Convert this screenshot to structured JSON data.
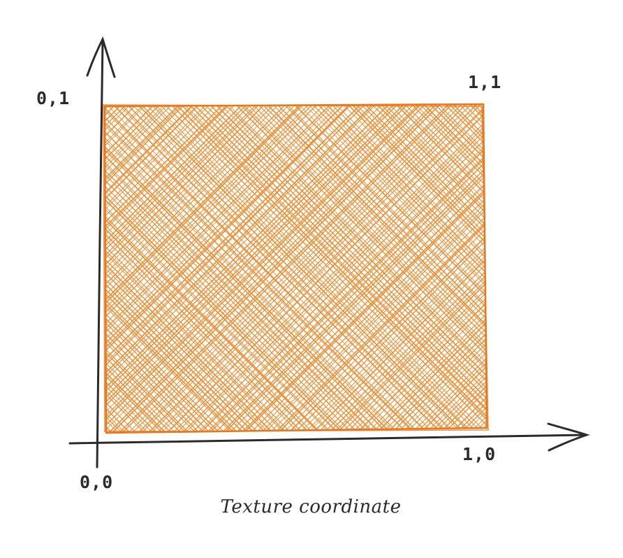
{
  "diagram": {
    "colors": {
      "fill": "#f08a2c",
      "stroke": "#e8771d",
      "axis": "#2b2b2b",
      "text": "#2b2b2b"
    },
    "corners": {
      "top_left": "0,1",
      "top_right": "1,1",
      "bottom_right": "1,0",
      "bottom_left": "0,0"
    },
    "caption": "Texture coordinate"
  }
}
